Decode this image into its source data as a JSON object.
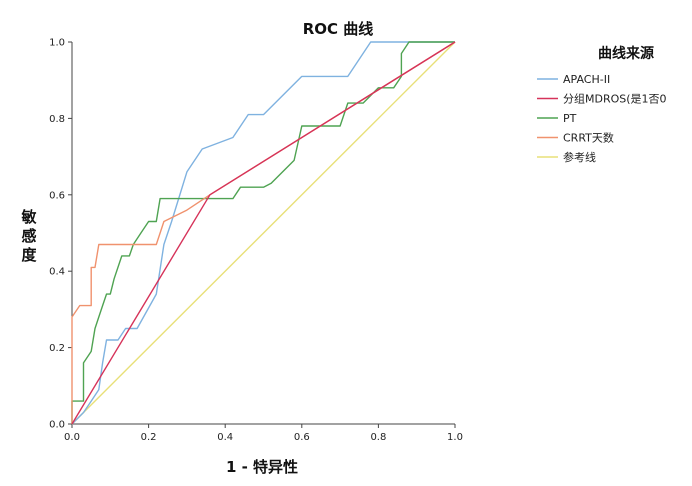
{
  "chart_data": {
    "type": "line",
    "title": "ROC 曲线",
    "xlabel": "1 - 特异性",
    "ylabel": "敏感度",
    "xlim": [
      0,
      1
    ],
    "ylim": [
      0,
      1
    ],
    "xticks": [
      "0.0",
      "0.2",
      "0.4",
      "0.6",
      "0.8",
      "1.0"
    ],
    "yticks": [
      "0.0",
      "0.2",
      "0.4",
      "0.6",
      "0.8",
      "1.0"
    ],
    "grid": false,
    "legend": {
      "title": "曲线来源",
      "placement": "right"
    },
    "series": [
      {
        "name": "APACH-II",
        "color": "#7fb2e0",
        "points": [
          [
            0,
            0
          ],
          [
            0.03,
            0.03
          ],
          [
            0.05,
            0.06
          ],
          [
            0.07,
            0.09
          ],
          [
            0.08,
            0.16
          ],
          [
            0.09,
            0.22
          ],
          [
            0.12,
            0.22
          ],
          [
            0.14,
            0.25
          ],
          [
            0.17,
            0.25
          ],
          [
            0.22,
            0.34
          ],
          [
            0.24,
            0.47
          ],
          [
            0.26,
            0.53
          ],
          [
            0.3,
            0.66
          ],
          [
            0.34,
            0.72
          ],
          [
            0.42,
            0.75
          ],
          [
            0.46,
            0.81
          ],
          [
            0.5,
            0.81
          ],
          [
            0.6,
            0.91
          ],
          [
            0.72,
            0.91
          ],
          [
            0.78,
            1.0
          ],
          [
            1.0,
            1.0
          ]
        ]
      },
      {
        "name": "分组MDROS(是1否0",
        "color": "#d6335a",
        "points": [
          [
            0,
            0
          ],
          [
            0.36,
            0.6
          ],
          [
            1.0,
            1.0
          ]
        ]
      },
      {
        "name": "PT",
        "color": "#4fa352",
        "points": [
          [
            0,
            0
          ],
          [
            0,
            0.06
          ],
          [
            0.03,
            0.06
          ],
          [
            0.03,
            0.16
          ],
          [
            0.05,
            0.19
          ],
          [
            0.06,
            0.25
          ],
          [
            0.07,
            0.28
          ],
          [
            0.08,
            0.31
          ],
          [
            0.09,
            0.34
          ],
          [
            0.1,
            0.34
          ],
          [
            0.11,
            0.38
          ],
          [
            0.13,
            0.44
          ],
          [
            0.15,
            0.44
          ],
          [
            0.16,
            0.47
          ],
          [
            0.18,
            0.5
          ],
          [
            0.2,
            0.53
          ],
          [
            0.22,
            0.53
          ],
          [
            0.23,
            0.59
          ],
          [
            0.42,
            0.59
          ],
          [
            0.44,
            0.62
          ],
          [
            0.5,
            0.62
          ],
          [
            0.52,
            0.63
          ],
          [
            0.58,
            0.69
          ],
          [
            0.6,
            0.78
          ],
          [
            0.66,
            0.78
          ],
          [
            0.7,
            0.78
          ],
          [
            0.72,
            0.84
          ],
          [
            0.76,
            0.84
          ],
          [
            0.8,
            0.88
          ],
          [
            0.84,
            0.88
          ],
          [
            0.86,
            0.91
          ],
          [
            0.86,
            0.97
          ],
          [
            0.88,
            1.0
          ],
          [
            1.0,
            1.0
          ]
        ]
      },
      {
        "name": "CRRT天数",
        "color": "#f0926e",
        "points": [
          [
            0,
            0
          ],
          [
            0,
            0.28
          ],
          [
            0.02,
            0.31
          ],
          [
            0.05,
            0.31
          ],
          [
            0.05,
            0.41
          ],
          [
            0.06,
            0.41
          ],
          [
            0.07,
            0.47
          ],
          [
            0.22,
            0.47
          ],
          [
            0.24,
            0.53
          ],
          [
            0.3,
            0.56
          ],
          [
            0.36,
            0.6
          ],
          [
            1.0,
            1.0
          ]
        ]
      },
      {
        "name": "参考线",
        "color": "#e8e078",
        "points": [
          [
            0,
            0
          ],
          [
            1,
            1
          ]
        ]
      }
    ]
  }
}
